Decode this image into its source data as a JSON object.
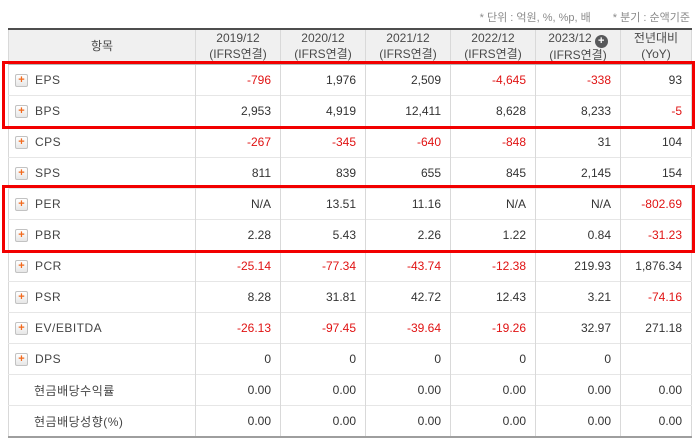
{
  "notes": {
    "unit": "* 단위 : 억원, %, %p, 배",
    "basis": "* 분기 : 순액기준"
  },
  "table": {
    "item_header": "항목",
    "columns": [
      {
        "period": "2019/12",
        "standard": "(IFRS연결)",
        "plus": false
      },
      {
        "period": "2020/12",
        "standard": "(IFRS연결)",
        "plus": false
      },
      {
        "period": "2021/12",
        "standard": "(IFRS연결)",
        "plus": false
      },
      {
        "period": "2022/12",
        "standard": "(IFRS연결)",
        "plus": false
      },
      {
        "period": "2023/12",
        "standard": "(IFRS연결)",
        "plus": true
      },
      {
        "period": "전년대비",
        "standard": "(YoY)",
        "plus": false
      }
    ],
    "rows": [
      {
        "label": "EPS",
        "expandable": true,
        "indent": false,
        "values": [
          "-796",
          "1,976",
          "2,509",
          "-4,645",
          "-338",
          "93"
        ]
      },
      {
        "label": "BPS",
        "expandable": true,
        "indent": false,
        "values": [
          "2,953",
          "4,919",
          "12,411",
          "8,628",
          "8,233",
          "-5"
        ]
      },
      {
        "label": "CPS",
        "expandable": true,
        "indent": false,
        "values": [
          "-267",
          "-345",
          "-640",
          "-848",
          "31",
          "104"
        ]
      },
      {
        "label": "SPS",
        "expandable": true,
        "indent": false,
        "values": [
          "811",
          "839",
          "655",
          "845",
          "2,145",
          "154"
        ]
      },
      {
        "label": "PER",
        "expandable": true,
        "indent": false,
        "values": [
          "N/A",
          "13.51",
          "11.16",
          "N/A",
          "N/A",
          "-802.69"
        ]
      },
      {
        "label": "PBR",
        "expandable": true,
        "indent": false,
        "values": [
          "2.28",
          "5.43",
          "2.26",
          "1.22",
          "0.84",
          "-31.23"
        ]
      },
      {
        "label": "PCR",
        "expandable": true,
        "indent": false,
        "values": [
          "-25.14",
          "-77.34",
          "-43.74",
          "-12.38",
          "219.93",
          "1,876.34"
        ]
      },
      {
        "label": "PSR",
        "expandable": true,
        "indent": false,
        "values": [
          "8.28",
          "31.81",
          "42.72",
          "12.43",
          "3.21",
          "-74.16"
        ]
      },
      {
        "label": "EV/EBITDA",
        "expandable": true,
        "indent": false,
        "values": [
          "-26.13",
          "-97.45",
          "-39.64",
          "-19.26",
          "32.97",
          "271.18"
        ]
      },
      {
        "label": "DPS",
        "expandable": true,
        "indent": false,
        "values": [
          "0",
          "0",
          "0",
          "0",
          "0",
          ""
        ]
      },
      {
        "label": "현금배당수익률",
        "expandable": false,
        "indent": true,
        "values": [
          "0.00",
          "0.00",
          "0.00",
          "0.00",
          "0.00",
          "0.00"
        ]
      },
      {
        "label": "현금배당성향(%)",
        "expandable": false,
        "indent": true,
        "values": [
          "0.00",
          "0.00",
          "0.00",
          "0.00",
          "0.00",
          "0.00"
        ]
      }
    ],
    "highlights": [
      {
        "rows": [
          "EPS",
          "BPS"
        ]
      },
      {
        "rows": [
          "PER",
          "PBR"
        ]
      }
    ]
  },
  "icons": {
    "expand_icon": "+",
    "add_column_icon": "+"
  },
  "colors": {
    "negative_value": "#e01313",
    "default_value": "#333333",
    "highlight_border": "#f20000",
    "expand_plus": "#f26a1e",
    "header_bg": "#f0f0f0"
  }
}
